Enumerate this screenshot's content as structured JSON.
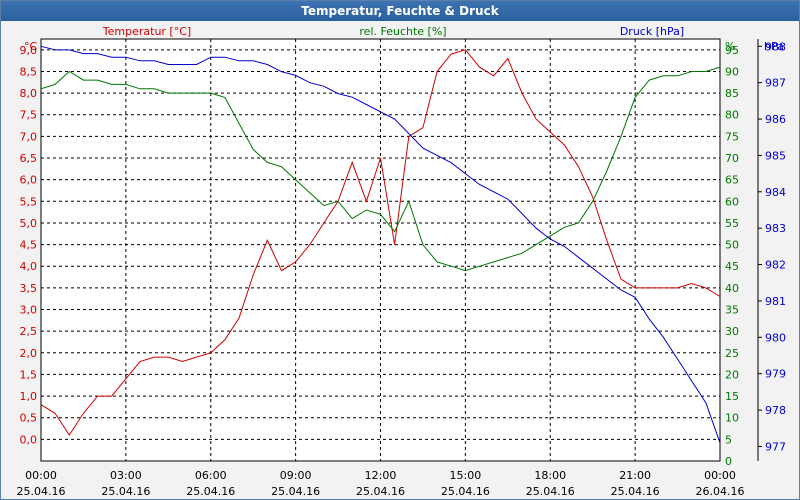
{
  "window": {
    "title": "Temperatur, Feuchte & Druck"
  },
  "chart_data": {
    "type": "line",
    "title": "Temperatur, Feuchte & Druck",
    "x": [
      "00:00",
      "00:30",
      "01:00",
      "01:30",
      "02:00",
      "02:30",
      "03:00",
      "03:30",
      "04:00",
      "04:30",
      "05:00",
      "05:30",
      "06:00",
      "06:30",
      "07:00",
      "07:30",
      "08:00",
      "08:30",
      "09:00",
      "09:30",
      "10:00",
      "10:30",
      "11:00",
      "11:30",
      "12:00",
      "12:30",
      "13:00",
      "13:30",
      "14:00",
      "14:30",
      "15:00",
      "15:30",
      "16:00",
      "16:30",
      "17:00",
      "17:30",
      "18:00",
      "18:30",
      "19:00",
      "19:30",
      "20:00",
      "20:30",
      "21:00",
      "21:30",
      "22:00",
      "22:30",
      "23:00",
      "23:30",
      "00:00"
    ],
    "x_ticks": [
      {
        "time": "00:00",
        "date": "25.04.16"
      },
      {
        "time": "03:00",
        "date": "25.04.16"
      },
      {
        "time": "06:00",
        "date": "25.04.16"
      },
      {
        "time": "09:00",
        "date": "25.04.16"
      },
      {
        "time": "12:00",
        "date": "25.04.16"
      },
      {
        "time": "15:00",
        "date": "25.04.16"
      },
      {
        "time": "18:00",
        "date": "25.04.16"
      },
      {
        "time": "21:00",
        "date": "25.04.16"
      },
      {
        "time": "00:00",
        "date": "26.04.16"
      }
    ],
    "series": [
      {
        "name": "Temperatur [°C]",
        "color": "#cc0000",
        "axis": "left",
        "values": [
          0.8,
          0.6,
          0.1,
          0.6,
          1.0,
          1.0,
          1.4,
          1.8,
          1.9,
          1.9,
          1.8,
          1.9,
          2.0,
          2.3,
          2.8,
          3.8,
          4.6,
          3.9,
          4.1,
          4.5,
          5.0,
          5.5,
          6.4,
          5.5,
          6.5,
          4.5,
          7.0,
          7.2,
          8.5,
          8.9,
          9.0,
          8.6,
          8.4,
          8.8,
          8.0,
          7.4,
          7.1,
          6.8,
          6.3,
          5.6,
          4.6,
          3.7,
          3.5,
          3.5,
          3.5,
          3.5,
          3.6,
          3.5,
          3.3
        ]
      },
      {
        "name": "rel. Feuchte [%]",
        "color": "#007700",
        "axis": "right1",
        "values": [
          86,
          87,
          90,
          88,
          88,
          87,
          87,
          86,
          86,
          85,
          85,
          85,
          85,
          84,
          78,
          72,
          69,
          68,
          65,
          62,
          59,
          60,
          56,
          58,
          57,
          53,
          60,
          50,
          46,
          45,
          44,
          45,
          46,
          47,
          48,
          50,
          52,
          54,
          55,
          60,
          67,
          75,
          84,
          88,
          89,
          89,
          90,
          90,
          91
        ]
      },
      {
        "name": "Druck [hPa]",
        "color": "#0000cc",
        "axis": "right2",
        "values": [
          988.0,
          987.9,
          987.9,
          987.8,
          987.8,
          987.7,
          987.7,
          987.6,
          987.6,
          987.5,
          987.5,
          987.5,
          987.7,
          987.7,
          987.6,
          987.6,
          987.5,
          987.3,
          987.2,
          987.0,
          986.9,
          986.7,
          986.6,
          986.4,
          986.2,
          986.0,
          985.6,
          985.2,
          985.0,
          984.8,
          984.5,
          984.2,
          984.0,
          983.8,
          983.4,
          983.0,
          982.7,
          982.5,
          982.2,
          981.9,
          981.6,
          981.3,
          981.1,
          980.5,
          980.0,
          979.4,
          978.8,
          978.2,
          977.1
        ]
      }
    ],
    "axes": {
      "left": {
        "label": "°C",
        "ylim": [
          -0.5,
          9.25
        ],
        "ticks": [
          "0,0",
          "0,5",
          "1,0",
          "1,5",
          "2,0",
          "2,5",
          "3,0",
          "3,5",
          "4,0",
          "4,5",
          "5,0",
          "5,5",
          "6,0",
          "6,5",
          "7,0",
          "7,5",
          "8,0",
          "8,5",
          "9,0"
        ]
      },
      "right1": {
        "label": "%",
        "ylim": [
          0,
          97.5
        ],
        "ticks": [
          "0",
          "5",
          "10",
          "15",
          "20",
          "25",
          "30",
          "35",
          "40",
          "45",
          "50",
          "55",
          "60",
          "65",
          "70",
          "75",
          "80",
          "85",
          "90",
          "95"
        ]
      },
      "right2": {
        "label": "hPa",
        "ylim": [
          976.6,
          988.2
        ],
        "ticks": [
          "977",
          "978",
          "979",
          "980",
          "981",
          "982",
          "983",
          "984",
          "985",
          "986",
          "987",
          "988"
        ]
      }
    },
    "grid": true,
    "legend": "top"
  }
}
